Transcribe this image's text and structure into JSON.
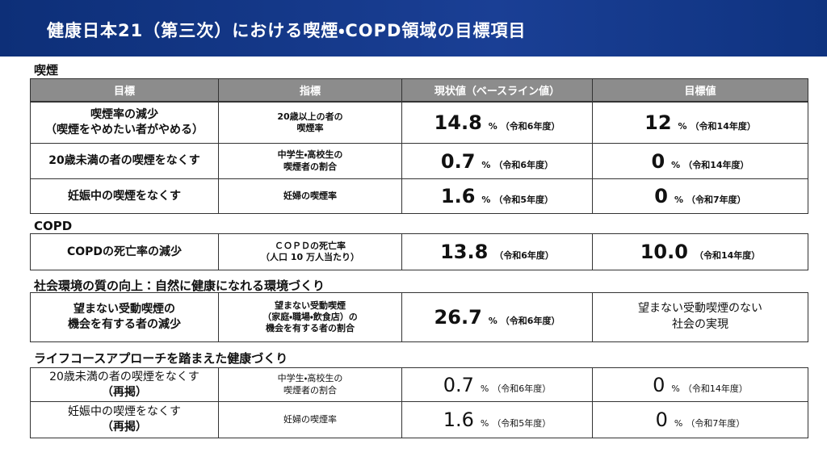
{
  "title": "健康日本21（第三次）における喫煙・COPD領域の目標項目",
  "headers": [
    "目標",
    "指標",
    "現状値（ベースライン値）",
    "目標値"
  ],
  "sections": [
    {
      "title": "喫煙",
      "rows": [
        {
          "goal": [
            "喫煙率の減少",
            "（喫煙をやめたい者がやめる）"
          ],
          "indicator": [
            "20歳以上の者の",
            "喫煙率"
          ],
          "baseline": {
            "value": "14.8",
            "unit": "%",
            "note": "（令和6年度）"
          },
          "target": {
            "value": "12",
            "unit": "%",
            "note": "（令和14年度）"
          }
        },
        {
          "goal": [
            "20歳未満の者の喫煙をなくす"
          ],
          "indicator": [
            "中学生・高校生の",
            "喫煙者の割合"
          ],
          "baseline": {
            "value": "0.7",
            "unit": "%",
            "note": "（令和6年度）"
          },
          "target": {
            "value": "0",
            "unit": "%",
            "note": "（令和14年度）"
          }
        },
        {
          "goal": [
            "妊娠中の喫煙をなくす"
          ],
          "indicator": [
            "妊婦の喫煙率"
          ],
          "baseline": {
            "value": "1.6",
            "unit": "%",
            "note": "（令和5年度）"
          },
          "target": {
            "value": "0",
            "unit": "%",
            "note": "（令和7年度）"
          }
        }
      ]
    },
    {
      "title": "COPD",
      "rows": [
        {
          "goal": [
            "COPDの死亡率の減少"
          ],
          "indicator": [
            "ＣＯＰＤの死亡率",
            "（人口 10 万人当たり）"
          ],
          "baseline": {
            "value": "13.8",
            "note": "（令和6年度）"
          },
          "target": {
            "value": "10.0",
            "note": "（令和14年度）"
          }
        }
      ]
    },
    {
      "title": "社会環境の質の向上：自然に健康になれる環境づくり",
      "rows": [
        {
          "goal": [
            "望まない受動喫煙の",
            "機会を有する者の減少"
          ],
          "indicator": [
            "望まない受動喫煙",
            "（家庭・職場・飲食店）の",
            "機会を有する者の割合"
          ],
          "baseline": {
            "value": "26.7",
            "unit": "%",
            "note": "（令和6年度）"
          },
          "target": {
            "lines": [
              "望まない受動喫煙のない",
              "社会の実現"
            ]
          }
        }
      ]
    },
    {
      "title": "ライフコースアプローチを踏まえた健康づくり",
      "rows": [
        {
          "goal": [
            "20歳未満の者の喫煙をなくす",
            "（再掲）"
          ],
          "indicator": [
            "中学生・高校生の",
            "喫煙者の割合"
          ],
          "baseline": {
            "value": "0.7",
            "unit": "%",
            "note": "（令和6年度）"
          },
          "target": {
            "value": "0",
            "unit": "%",
            "note": "（令和14年度）"
          }
        },
        {
          "goal": [
            "妊娠中の喫煙をなくす",
            "（再掲）"
          ],
          "indicator": [
            "妊婦の喫煙率"
          ],
          "baseline": {
            "value": "1.6",
            "unit": "%",
            "note": "（令和5年度）"
          },
          "target": {
            "value": "0",
            "unit": "%",
            "note": "（令和7年度）"
          }
        }
      ]
    }
  ]
}
